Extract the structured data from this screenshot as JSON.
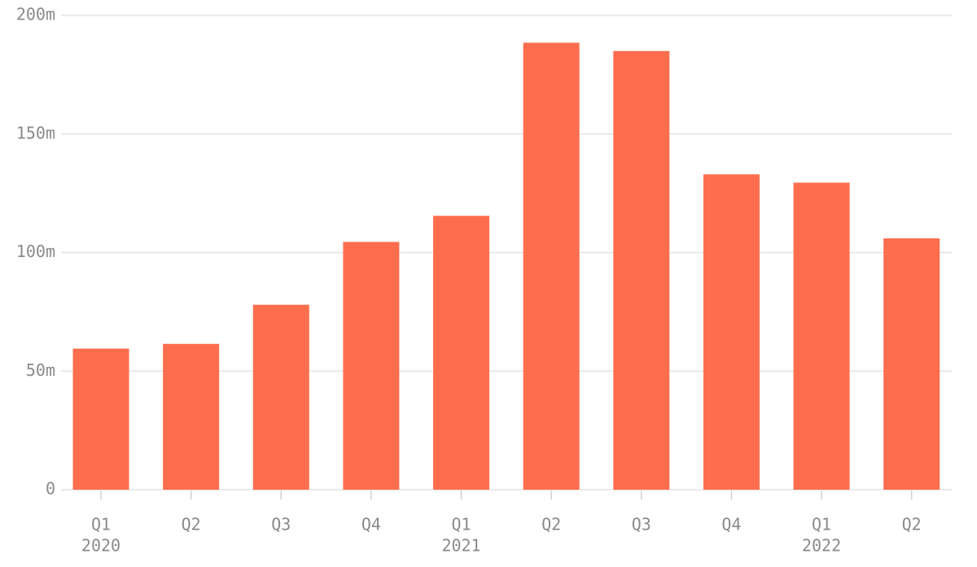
{
  "chart_data": {
    "type": "bar",
    "categories": [
      "Q1",
      "Q2",
      "Q3",
      "Q4",
      "Q1",
      "Q2",
      "Q3",
      "Q4",
      "Q1",
      "Q2"
    ],
    "year_labels": [
      "2020",
      null,
      null,
      null,
      "2021",
      null,
      null,
      null,
      "2022",
      null
    ],
    "values": [
      59500000,
      61500000,
      78000000,
      104500000,
      115500000,
      188500000,
      185000000,
      133000000,
      129500000,
      106000000
    ],
    "color": "#fe6e4e",
    "ylim": [
      0,
      200000000
    ],
    "yticks": [
      0,
      {
        "value": 50000000,
        "label": "50m"
      },
      {
        "value": 100000000,
        "label": "100m"
      },
      {
        "value": 150000000,
        "label": "150m"
      },
      {
        "value": 200000000,
        "label": "200m"
      }
    ],
    "grid": true
  }
}
